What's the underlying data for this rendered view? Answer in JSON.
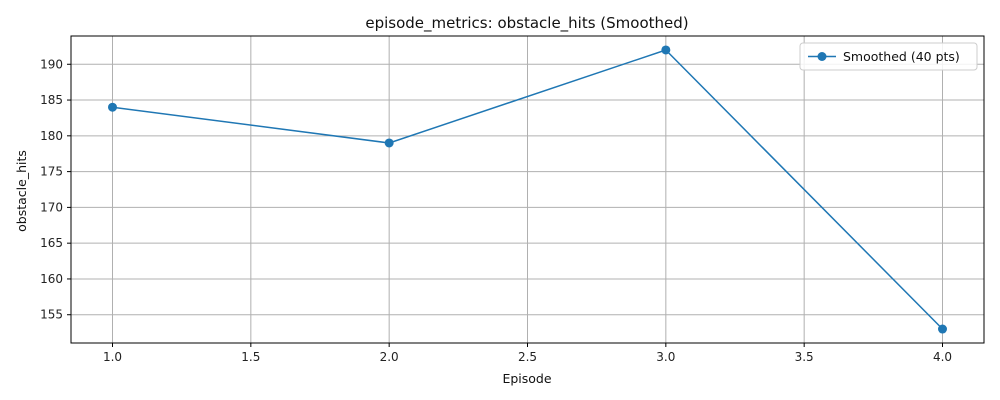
{
  "chart_data": {
    "type": "line",
    "title": "episode_metrics: obstacle_hits (Smoothed)",
    "xlabel": "Episode",
    "ylabel": "obstacle_hits",
    "xlim": [
      0.85,
      4.15
    ],
    "ylim": [
      151.05,
      193.95
    ],
    "x_ticks": [
      1.0,
      1.5,
      2.0,
      2.5,
      3.0,
      3.5,
      4.0
    ],
    "x_tick_labels": [
      "1.0",
      "1.5",
      "2.0",
      "2.5",
      "3.0",
      "3.5",
      "4.0"
    ],
    "y_ticks": [
      155,
      160,
      165,
      170,
      175,
      180,
      185,
      190
    ],
    "y_tick_labels": [
      "155",
      "160",
      "165",
      "170",
      "175",
      "180",
      "185",
      "190"
    ],
    "grid": true,
    "legend_position": "top-right",
    "series": [
      {
        "name": "Smoothed (40 pts)",
        "color": "#1f77b4",
        "marker": "circle",
        "x": [
          1.0,
          2.0,
          3.0,
          4.0
        ],
        "y": [
          184,
          179,
          192,
          153
        ]
      }
    ]
  }
}
